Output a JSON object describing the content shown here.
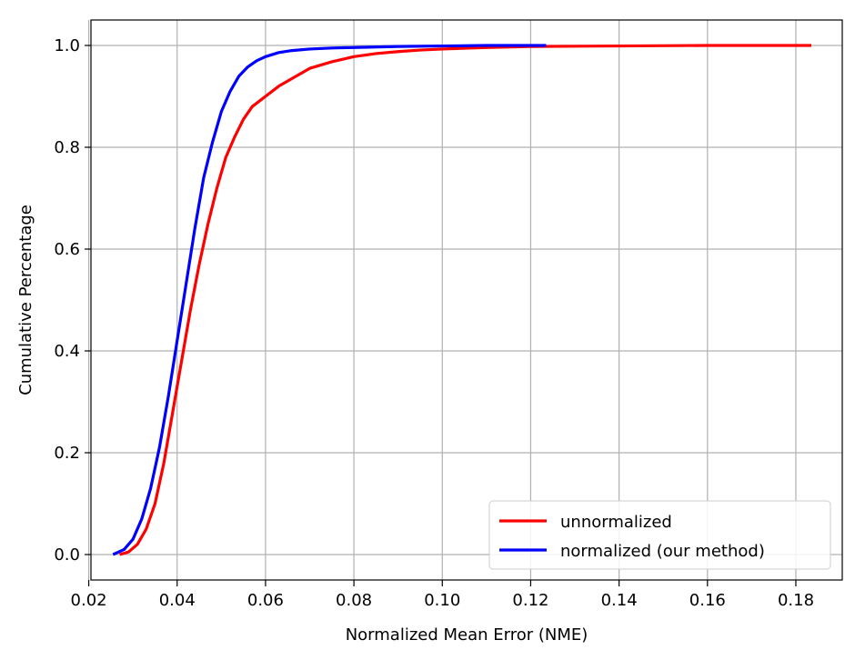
{
  "chart_data": {
    "type": "line",
    "title": "",
    "xlabel": "Normalized Mean Error (NME)",
    "ylabel": "Cumulative Percentage",
    "xlim": [
      0.0205,
      0.1905
    ],
    "ylim": [
      -0.05,
      1.05
    ],
    "xticks": [
      0.02,
      0.04,
      0.06,
      0.08,
      0.1,
      0.12,
      0.14,
      0.16,
      0.18
    ],
    "xtick_labels": [
      "0.02",
      "0.04",
      "0.06",
      "0.08",
      "0.10",
      "0.12",
      "0.14",
      "0.16",
      "0.18"
    ],
    "yticks": [
      0.0,
      0.2,
      0.4,
      0.6,
      0.8,
      1.0
    ],
    "ytick_labels": [
      "0.0",
      "0.2",
      "0.4",
      "0.6",
      "0.8",
      "1.0"
    ],
    "grid": true,
    "legend": "lower-right",
    "series": [
      {
        "name": "unnormalized",
        "color": "#ff0000",
        "x": [
          0.027,
          0.029,
          0.031,
          0.033,
          0.035,
          0.037,
          0.039,
          0.041,
          0.043,
          0.045,
          0.047,
          0.049,
          0.051,
          0.053,
          0.055,
          0.057,
          0.06,
          0.063,
          0.066,
          0.07,
          0.075,
          0.08,
          0.085,
          0.09,
          0.095,
          0.1,
          0.11,
          0.12,
          0.14,
          0.16,
          0.18,
          0.1835
        ],
        "y": [
          0.0,
          0.005,
          0.02,
          0.05,
          0.1,
          0.18,
          0.28,
          0.38,
          0.48,
          0.57,
          0.65,
          0.72,
          0.78,
          0.82,
          0.855,
          0.88,
          0.9,
          0.92,
          0.935,
          0.955,
          0.968,
          0.978,
          0.984,
          0.988,
          0.991,
          0.993,
          0.996,
          0.998,
          0.999,
          1.0,
          1.0,
          1.0
        ]
      },
      {
        "name": "normalized (our method)",
        "color": "#0000ff",
        "x": [
          0.0255,
          0.028,
          0.03,
          0.032,
          0.034,
          0.036,
          0.038,
          0.04,
          0.042,
          0.044,
          0.046,
          0.048,
          0.05,
          0.052,
          0.054,
          0.056,
          0.058,
          0.06,
          0.063,
          0.066,
          0.07,
          0.075,
          0.08,
          0.09,
          0.1,
          0.11,
          0.1235
        ],
        "y": [
          0.0,
          0.01,
          0.03,
          0.07,
          0.13,
          0.21,
          0.31,
          0.42,
          0.53,
          0.64,
          0.74,
          0.81,
          0.87,
          0.91,
          0.94,
          0.958,
          0.97,
          0.978,
          0.986,
          0.99,
          0.993,
          0.995,
          0.996,
          0.998,
          0.999,
          1.0,
          1.0
        ]
      }
    ]
  }
}
